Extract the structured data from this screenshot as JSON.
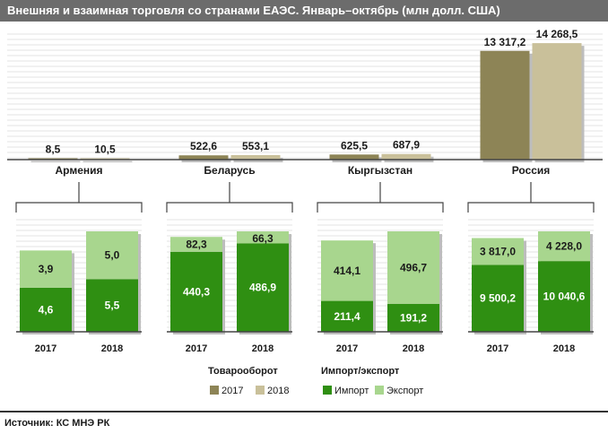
{
  "title": "Внешняя и взаимная торговля со странами ЕАЭС. Январь–октябрь (млн долл. США)",
  "colors": {
    "y2017": "#8d8456",
    "y2018": "#c9c09a",
    "import": "#2f8f12",
    "export": "#a8d68e",
    "title_bg": "#6c6c6c"
  },
  "legend": {
    "turnover_title": "Товарооборот",
    "impexp_title": "Импорт/экспорт",
    "y2017": "2017",
    "y2018": "2018",
    "import": "Импорт",
    "export": "Экспорт"
  },
  "source": "Источник:  КС  МНЭ РК",
  "chart_data": [
    {
      "type": "bar",
      "title": "Товарооборот",
      "categories": [
        "Армения",
        "Беларусь",
        "Кыргызстан",
        "Россия"
      ],
      "series": [
        {
          "name": "2017",
          "values": [
            8.5,
            522.6,
            625.5,
            13317.2
          ],
          "labels": [
            "8,5",
            "522,6",
            "625,5",
            "13 317,2"
          ]
        },
        {
          "name": "2018",
          "values": [
            10.5,
            553.1,
            687.9,
            14268.5
          ],
          "labels": [
            "10,5",
            "553,1",
            "687,9",
            "14 268,5"
          ]
        }
      ]
    },
    {
      "type": "bar",
      "stacked": true,
      "title": "Импорт/экспорт",
      "panels": [
        {
          "country": "Армения",
          "categories": [
            "2017",
            "2018"
          ],
          "import": [
            4.6,
            5.5
          ],
          "export": [
            3.9,
            5.0
          ],
          "import_labels": [
            "4,6",
            "5,5"
          ],
          "export_labels": [
            "3,9",
            "5,0"
          ]
        },
        {
          "country": "Беларусь",
          "categories": [
            "2017",
            "2018"
          ],
          "import": [
            440.3,
            486.9
          ],
          "export": [
            82.3,
            66.3
          ],
          "import_labels": [
            "440,3",
            "486,9"
          ],
          "export_labels": [
            "82,3",
            "66,3"
          ]
        },
        {
          "country": "Кыргызстан",
          "categories": [
            "2017",
            "2018"
          ],
          "import": [
            211.4,
            191.2
          ],
          "export": [
            414.1,
            496.7
          ],
          "import_labels": [
            "211,4",
            "191,2"
          ],
          "export_labels": [
            "414,1",
            "496,7"
          ]
        },
        {
          "country": "Россия",
          "categories": [
            "2017",
            "2018"
          ],
          "import": [
            9500.2,
            10040.6
          ],
          "export": [
            3817.0,
            4228.0
          ],
          "import_labels": [
            "9 500,2",
            "10 040,6"
          ],
          "export_labels": [
            "3 817,0",
            "4 228,0"
          ]
        }
      ]
    }
  ]
}
